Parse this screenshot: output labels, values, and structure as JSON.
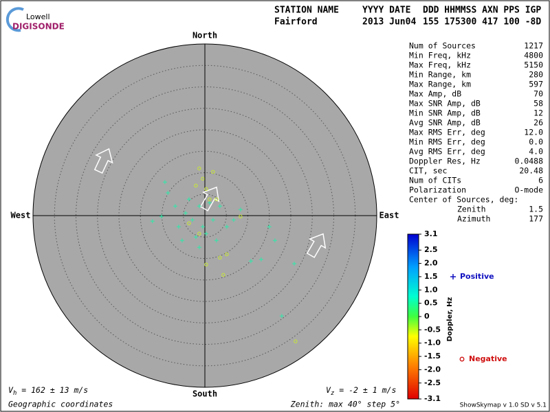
{
  "chart_data": {
    "type": "scatter",
    "logo": {
      "top": "Lowell",
      "bottom": "DIGISONDE"
    },
    "header": {
      "labels": [
        "STATION NAME",
        "YYYY DATE",
        "DDD HHMMSS AXN PPS IGP"
      ],
      "values": [
        "Fairford",
        "2013 Jun04",
        "155 175300 417 100 -8D"
      ]
    },
    "directions": {
      "north": "North",
      "south": "South",
      "east": "East",
      "west": "West"
    },
    "rlim": [
      0,
      40
    ],
    "rticks": [
      5,
      10,
      15,
      20,
      25,
      30,
      35
    ],
    "series": [
      {
        "name": "Positive",
        "marker": "plus",
        "color": "#3fe0a8",
        "legend_color": "#1010c0",
        "x": [
          -6.1,
          -4.5,
          -2.9,
          -1.3,
          -0.5,
          0.3,
          1.9,
          3.5,
          -2.1,
          -3.7,
          1.1,
          -5.3,
          5.1,
          6.7,
          8.3,
          -12.2,
          -10.1,
          -9.3,
          -8.6,
          10.7,
          13.1,
          16.3,
          15.0,
          20.8,
          17.9,
          -6.9,
          2.7,
          -1.3
        ],
        "values": [
          -2.6,
          0.6,
          -1.0,
          2.2,
          -2.6,
          -4.2,
          -1.0,
          2.2,
          -5.0,
          3.8,
          3.0,
          -5.8,
          -2.6,
          -1.0,
          1.4,
          -1.3,
          -0.2,
          7.8,
          5.3,
          -10.6,
          -10.2,
          -5.8,
          -2.6,
          -11.2,
          -23.4,
          2.2,
          -5.8,
          -7.4
        ]
      },
      {
        "name": "Negative",
        "marker": "circle",
        "color": "#c8ea30",
        "legend_color": "#d01010",
        "x": [
          -1.3,
          -0.5,
          0.3,
          -2.1,
          1.9,
          1.1,
          3.5,
          4.3,
          0.3,
          -1.3,
          5.1,
          8.3,
          21.1,
          2.7,
          -3.7
        ],
        "values": [
          11.0,
          8.6,
          6.2,
          7.0,
          10.2,
          3.8,
          -9.8,
          -13.8,
          -11.4,
          -4.2,
          -9.0,
          -0.2,
          -29.3,
          3.8,
          -1.8
        ]
      }
    ],
    "stats": [
      [
        "Num of Sources",
        "1217"
      ],
      [
        "Min Freq, kHz",
        "4800"
      ],
      [
        "Max Freq, kHz",
        "5150"
      ],
      [
        "Min Range, km",
        "280"
      ],
      [
        "Max Range, km",
        "597"
      ],
      [
        "Max Amp, dB",
        "70"
      ],
      [
        "Max SNR Amp, dB",
        "58"
      ],
      [
        "Min SNR Amp, dB",
        "12"
      ],
      [
        "Avg SNR Amp, dB",
        "26"
      ],
      [
        "Max RMS Err, deg",
        "12.0"
      ],
      [
        "Min RMS Err, deg",
        "0.0"
      ],
      [
        "Avg RMS Err, deg",
        "4.0"
      ],
      [
        "Doppler Res, Hz",
        "0.0488"
      ],
      [
        "CIT, sec",
        "20.48"
      ],
      [
        "Num of CITs",
        "6"
      ],
      [
        "Polarization",
        "O-mode"
      ]
    ],
    "center_title": "Center of Sources, deg:",
    "center": [
      [
        "Zenith",
        "1.5"
      ],
      [
        "Azimuth",
        "177"
      ]
    ],
    "colorbar": {
      "label": "Doppler, Hz",
      "clim": [
        -3.1,
        3.1
      ],
      "ticks": [
        3.1,
        2.5,
        {
          "value": 2,
          "label": "2.0"
        },
        1.5,
        {
          "value": 1,
          "label": "1.0"
        },
        0.5,
        0,
        -0.5,
        {
          "value": -1,
          "label": "-1.0"
        },
        -1.5,
        {
          "value": -2,
          "label": "-2.0"
        },
        -2.5,
        -3.1
      ]
    },
    "vh": {
      "symbol": "V",
      "sub": "h",
      "text": " = 162 ± 13 m/s"
    },
    "vz": {
      "symbol": "V",
      "sub": "z",
      "text": " = -2 ± 1 m/s"
    },
    "coordinates": "Geographic coordinates",
    "zenith_note": "Zenith: max 40°  step 5°",
    "version": "ShowSkymap v 1.0  SD v 5.1"
  }
}
